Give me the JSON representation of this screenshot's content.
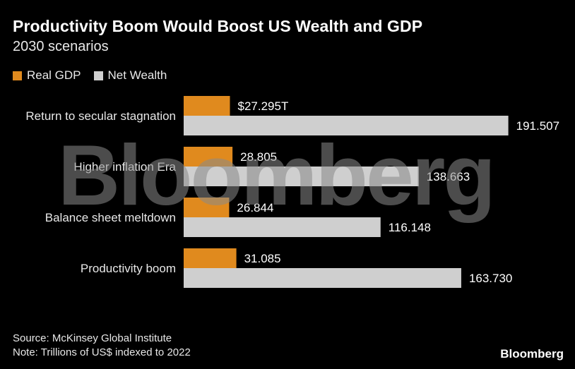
{
  "chart": {
    "title": "Productivity Boom Would Boost US Wealth and GDP",
    "subtitle": "2030 scenarios",
    "watermark": "Bloomberg",
    "source": "Source: McKinsey Global Institute",
    "note": "Note: Trillions of US$ indexed to 2022",
    "brand": "Bloomberg"
  },
  "colors": {
    "gdp": "#e08a1e",
    "wealth": "#cfcfcf",
    "text": "#ffffff",
    "background": "#000000"
  },
  "chart_data": {
    "type": "bar",
    "orientation": "horizontal",
    "title": "Productivity Boom Would Boost US Wealth and GDP",
    "subtitle": "2030 scenarios",
    "categories": [
      "Return to secular stagnation",
      "Higher inflation Era",
      "Balance sheet meltdown",
      "Productivity boom"
    ],
    "series": [
      {
        "name": "Real GDP",
        "values": [
          27.295,
          28.805,
          26.844,
          31.085
        ],
        "labels": [
          "$27.295T",
          "28.805",
          "26.844",
          "31.085"
        ]
      },
      {
        "name": "Net Wealth",
        "values": [
          191.507,
          138.663,
          116.148,
          163.73
        ],
        "labels": [
          "191.507",
          "138.663",
          "116.148",
          "163.730"
        ]
      }
    ],
    "xlim": [
      0,
      200
    ],
    "legend": "top-left",
    "grid": false
  }
}
